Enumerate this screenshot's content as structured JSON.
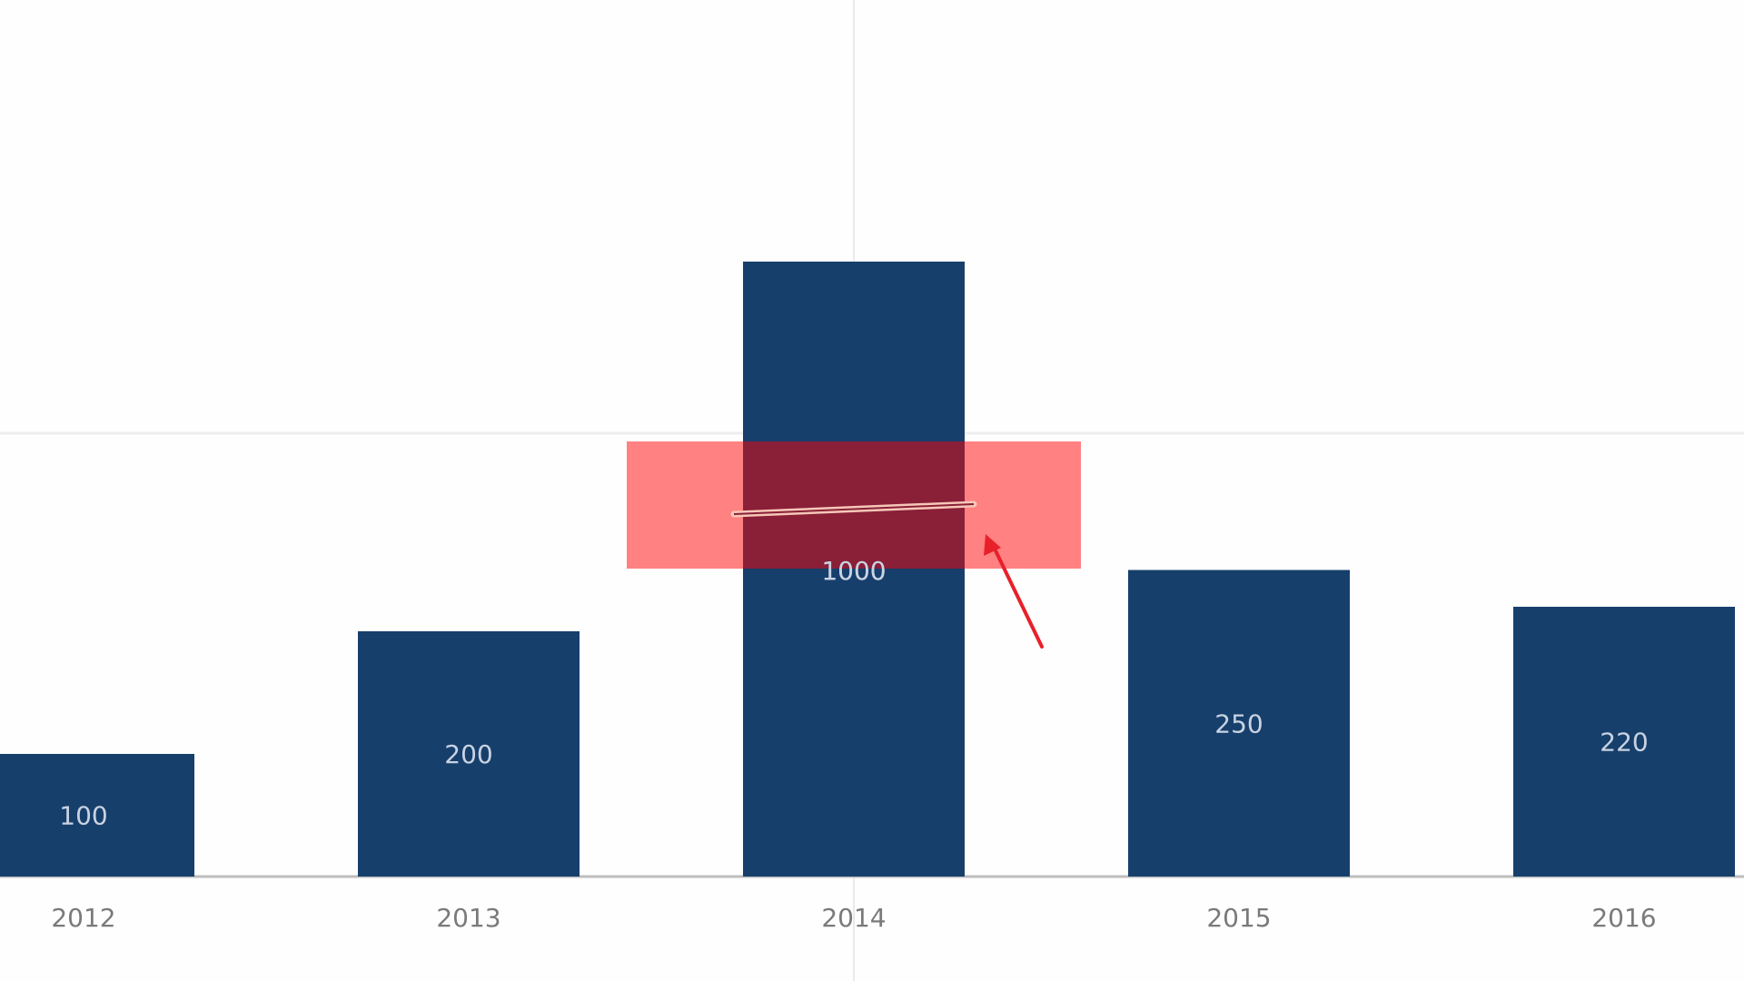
{
  "chart_data": {
    "type": "bar",
    "categories": [
      "2012",
      "2013",
      "2014",
      "2015",
      "2016"
    ],
    "values": [
      100,
      200,
      1000,
      250,
      220
    ],
    "title": "",
    "xlabel": "",
    "ylabel": "",
    "scale_break": true,
    "annotation": {
      "description": "highlighted scale-break on tallest bar with arrow",
      "color": "#ff6b6b"
    },
    "colors": {
      "bar": "#173f6c",
      "bar_label": "#c9d3e2",
      "axis_label": "#7a7a7a",
      "baseline": "#bdbdbd",
      "highlight": "#ff6b6b",
      "arrow": "#e8202a"
    }
  }
}
